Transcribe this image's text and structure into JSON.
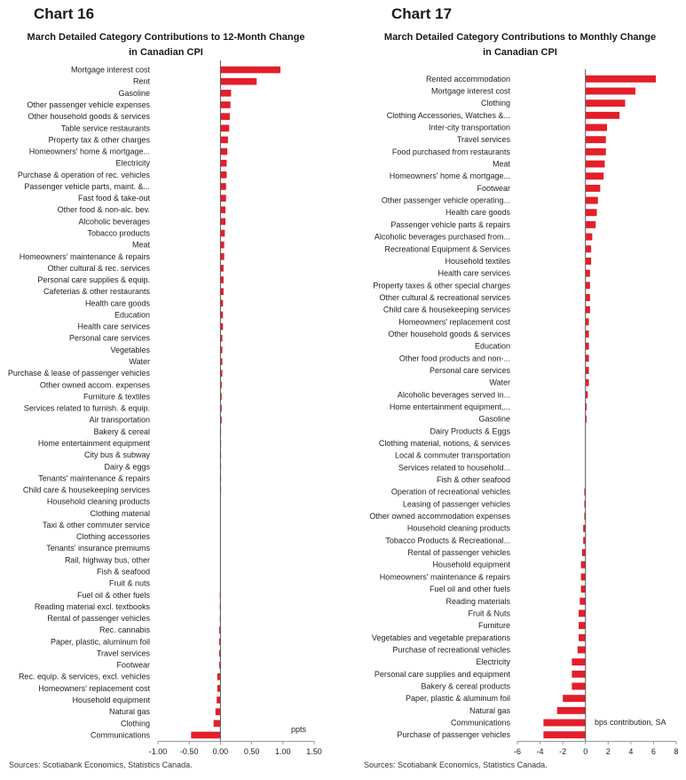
{
  "accent_color": "#e41e2b",
  "chart_data": [
    {
      "type": "bar",
      "orientation": "horizontal",
      "chart_label": "Chart 16",
      "title": "March Detailed Category Contributions to 12-Month Change in Canadian CPI",
      "unit_label": "ppts",
      "source": "Sources: Scotiabank Economics, Statistics Canada.",
      "xlim": [
        -1.0,
        1.5
      ],
      "ticks": [
        -1.0,
        -0.5,
        0.0,
        0.5,
        1.0,
        1.5
      ],
      "tick_labels": [
        "-1.00",
        "-0.50",
        "0.00",
        "0.50",
        "1.00",
        "1.50"
      ],
      "categories": [
        "Mortgage interest cost",
        "Rent",
        "Gasoline",
        "Other passenger vehicle expenses",
        "Other household goods & services",
        "Table service restaurants",
        "Property tax & other charges",
        "Homeowners' home & mortgage...",
        "Electricity",
        "Purchase & operation of rec. vehicles",
        "Passenger vehicle parts, maint. &...",
        "Fast food & take-out",
        "Other food & non-alc. bev.",
        "Alcoholic beverages",
        "Tobacco products",
        "Meat",
        "Homeowners' maintenance & repairs",
        "Other cultural & rec. services",
        "Personal care supplies & equip.",
        "Cafeterias & other restaurants",
        "Health care goods",
        "Education",
        "Health care services",
        "Personal care services",
        "Vegetables",
        "Water",
        "Purchase & lease of passenger vehicles",
        "Other owned accom. expenses",
        "Furniture & textiles",
        "Services related to furnish. & equip.",
        "Air transportation",
        "Bakery & cereal",
        "Home entertainment equipment",
        "City bus & subway",
        "Dairy & eggs",
        "Tenants' maintenance & repairs",
        "Child care & housekeeping services",
        "Household cleaning products",
        "Clothing material",
        "Taxi & other commuter service",
        "Clothing accessories",
        "Tenants' insurance premiums",
        "Rail, highway bus, other",
        "Fish & seafood",
        "Fruit & nuts",
        "Fuel oil & other fuels",
        "Reading material excl. textbooks",
        "Rental of passenger vehicles",
        "Rec. cannabis",
        "Paper, plastic, aluminum foil",
        "Travel services",
        "Footwear",
        "Rec. equip. & services, excl. vehicles",
        "Homeowners' replacement cost",
        "Household equipment",
        "Natural gas",
        "Clothing",
        "Communications"
      ],
      "values": [
        0.96,
        0.58,
        0.17,
        0.16,
        0.15,
        0.14,
        0.12,
        0.11,
        0.1,
        0.1,
        0.09,
        0.09,
        0.08,
        0.08,
        0.07,
        0.06,
        0.06,
        0.05,
        0.05,
        0.05,
        0.04,
        0.04,
        0.04,
        0.03,
        0.03,
        0.03,
        0.03,
        0.02,
        0.02,
        0.02,
        0.02,
        0.01,
        0.01,
        0.01,
        0.01,
        0.01,
        0.01,
        0.0,
        0.0,
        0.0,
        0.0,
        0.0,
        0.0,
        0.0,
        0.0,
        -0.01,
        -0.01,
        -0.01,
        -0.02,
        -0.02,
        -0.02,
        -0.02,
        -0.05,
        -0.05,
        -0.06,
        -0.08,
        -0.11,
        -0.47
      ]
    },
    {
      "type": "bar",
      "orientation": "horizontal",
      "chart_label": "Chart 17",
      "title": "March Detailed Category Contributions to Monthly Change in Canadian CPI",
      "unit_label": "bps contribution, SA",
      "source": "Sources: Scotiabank Economics, Statistics Canada.",
      "xlim": [
        -6,
        8
      ],
      "ticks": [
        -6,
        -4,
        -2,
        0,
        2,
        4,
        6,
        8
      ],
      "tick_labels": [
        "-6",
        "-4",
        "-2",
        "0",
        "2",
        "4",
        "6",
        "8"
      ],
      "categories": [
        "Rented accommodation",
        "Mortgage interest cost",
        "Clothing",
        "Clothing Accessories, Watches &...",
        "Inter-city transportation",
        "Travel services",
        "Food purchased from restaurants",
        "Meat",
        "Homeowners' home & mortgage...",
        "Footwear",
        "Other passenger vehicle operating...",
        "Health care goods",
        "Passenger vehicle parts & repairs",
        "Alcoholic beverages purchased from...",
        "Recreational Equipment & Services",
        "Household textiles",
        "Health care services",
        "Property taxes & other special charges",
        "Other cultural & recreational services",
        "Child care & housekeeping services",
        "Homeowners' replacement cost",
        "Other household goods & services",
        "Education",
        "Other food products and non-...",
        "Personal care services",
        "Water",
        "Alcoholic beverages served in...",
        "Home entertainment equipment,...",
        "Gasoline",
        "Dairy Products & Eggs",
        "Clothing material, notions, & services",
        "Local & commuter transportation",
        "Services related to household...",
        "Fish & other seafood",
        "Operation of recreational vehicles",
        "Leasing of passenger vehicles",
        "Other owned accommodation expenses",
        "Household cleaning products",
        "Tobacco Products & Recreational...",
        "Rental of passenger vehicles",
        "Household equipment",
        "Homeowners' maintenance & repairs",
        "Fuel oil and other fuels",
        "Reading materials",
        "Fruit & Nuts",
        "Furniture",
        "Vegetables and vegetable preparations",
        "Purchase of recreational vehicles",
        "Electricity",
        "Personal care supplies and equipment",
        "Bakery & cereal products",
        "Paper, plastic & aluminum foil",
        "Natural gas",
        "Communications",
        "Purchase of passenger vehicles"
      ],
      "values": [
        6.2,
        4.4,
        3.5,
        3.0,
        1.9,
        1.8,
        1.8,
        1.7,
        1.6,
        1.3,
        1.1,
        1.0,
        0.9,
        0.6,
        0.5,
        0.5,
        0.4,
        0.4,
        0.4,
        0.4,
        0.3,
        0.3,
        0.3,
        0.3,
        0.3,
        0.3,
        0.2,
        0.1,
        0.1,
        0.0,
        0.0,
        0.0,
        0.0,
        0.0,
        -0.1,
        -0.1,
        -0.1,
        -0.2,
        -0.2,
        -0.3,
        -0.4,
        -0.4,
        -0.4,
        -0.5,
        -0.6,
        -0.6,
        -0.6,
        -0.7,
        -1.2,
        -1.2,
        -1.2,
        -2.0,
        -2.5,
        -3.7,
        -3.7
      ]
    }
  ]
}
